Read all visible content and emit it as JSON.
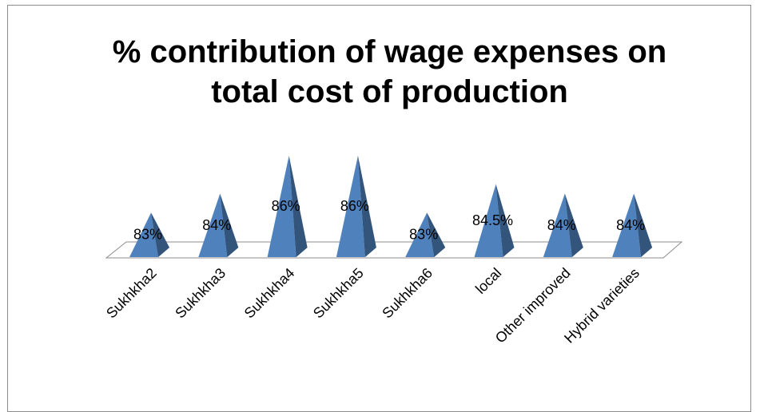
{
  "chart_data": {
    "type": "pyramid",
    "title": "% contribution of wage expenses on total cost of production",
    "categories": [
      "Sukhkha2",
      "Sukhkha3",
      "Sukhkha4",
      "Sukhkha5",
      "Sukhkha6",
      "local",
      "Other improved",
      "Hybrid varieties"
    ],
    "values": [
      83,
      84,
      86,
      86,
      83,
      84.5,
      84,
      84
    ],
    "value_labels": [
      "83%",
      "84%",
      "86%",
      "86%",
      "83%",
      "84.5%",
      "84%",
      "84%"
    ],
    "color": "#4f81bd",
    "ylim": [
      80.7,
      86
    ]
  }
}
